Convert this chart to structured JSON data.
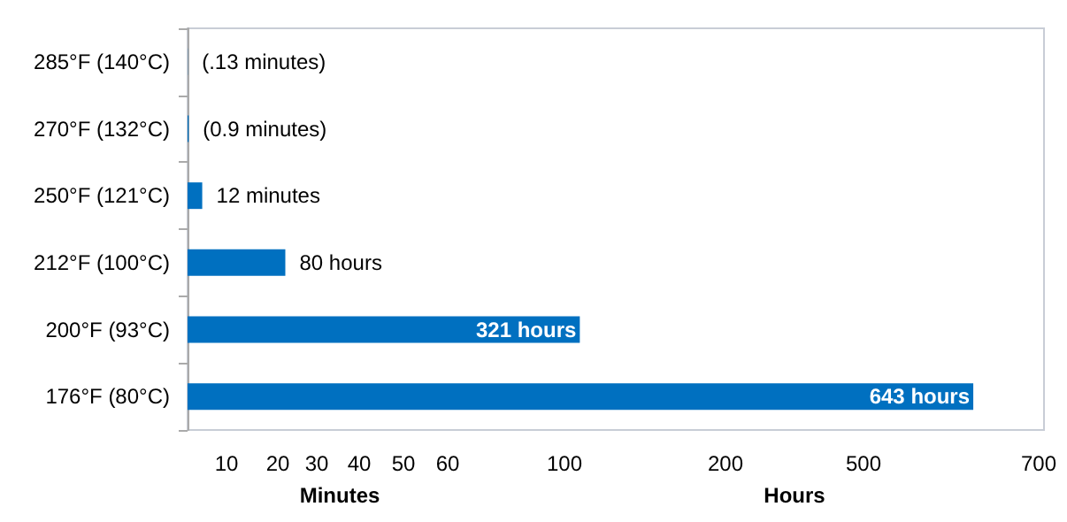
{
  "chart_data": {
    "type": "bar",
    "orientation": "horizontal",
    "categories": [
      "285°F (140°C)",
      "270°F (132°C)",
      "250°F (121°C)",
      "212°F (100°C)",
      "200°F (93°C)",
      "176°F (80°C)"
    ],
    "values": [
      0.13,
      0.9,
      12,
      80,
      321,
      643
    ],
    "value_labels": [
      "(.13 minutes)",
      "(0.9 minutes)",
      "12 minutes",
      "80 hours",
      "321 hours",
      "643 hours"
    ],
    "color": "#0070c0",
    "annotations": [
      "10",
      "20",
      "30",
      "40",
      "50",
      "60",
      "100",
      "200",
      "500",
      "700",
      "Minutes",
      "Hours"
    ]
  }
}
